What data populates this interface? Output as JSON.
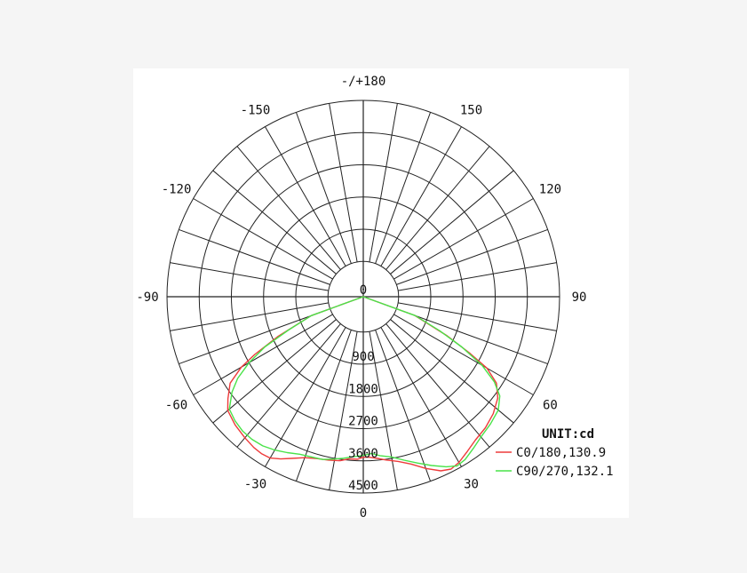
{
  "chart_data": {
    "type": "polar-line",
    "title": "",
    "unit_label": "UNIT:cd",
    "radial_max": 4500,
    "radial_ticks": [
      0,
      900,
      1800,
      2700,
      3600,
      4500
    ],
    "radial_tick_labels": [
      "0",
      "900",
      "1800",
      "2700",
      "3600",
      "4500"
    ],
    "angle_step_deg": 10,
    "angle_labels": [
      {
        "deg": 0,
        "text": "0"
      },
      {
        "deg": 30,
        "text": "30"
      },
      {
        "deg": 60,
        "text": "60"
      },
      {
        "deg": 90,
        "text": "90"
      },
      {
        "deg": 120,
        "text": "120"
      },
      {
        "deg": 150,
        "text": "150"
      },
      {
        "deg": 180,
        "text": "-/+180"
      },
      {
        "deg": -150,
        "text": "-150"
      },
      {
        "deg": -120,
        "text": "-120"
      },
      {
        "deg": -90,
        "text": "-90"
      },
      {
        "deg": -60,
        "text": "-60"
      },
      {
        "deg": -30,
        "text": "-30"
      }
    ],
    "grid": true,
    "legend_position": "bottom-right",
    "series": [
      {
        "name": "C0/180,130.9",
        "color": "#ee3b3b",
        "points": [
          [
            -70,
            560
          ],
          [
            -65,
            1650
          ],
          [
            -62,
            2450
          ],
          [
            -60,
            2950
          ],
          [
            -57,
            3450
          ],
          [
            -53,
            3750
          ],
          [
            -50,
            3960
          ],
          [
            -45,
            4080
          ],
          [
            -40,
            4160
          ],
          [
            -36,
            4220
          ],
          [
            -33,
            4240
          ],
          [
            -30,
            4220
          ],
          [
            -27,
            4100
          ],
          [
            -24,
            3960
          ],
          [
            -20,
            3800
          ],
          [
            -16,
            3720
          ],
          [
            -12,
            3680
          ],
          [
            -8,
            3640
          ],
          [
            -5,
            3560
          ],
          [
            -2,
            3560
          ],
          [
            0,
            3500
          ],
          [
            2,
            3500
          ],
          [
            5,
            3550
          ],
          [
            8,
            3620
          ],
          [
            12,
            3720
          ],
          [
            16,
            3880
          ],
          [
            20,
            4120
          ],
          [
            24,
            4340
          ],
          [
            27,
            4420
          ],
          [
            30,
            4360
          ],
          [
            34,
            4220
          ],
          [
            38,
            4100
          ],
          [
            43,
            4020
          ],
          [
            48,
            3900
          ],
          [
            53,
            3720
          ],
          [
            57,
            3450
          ],
          [
            60,
            3000
          ],
          [
            62,
            2400
          ],
          [
            65,
            1600
          ],
          [
            70,
            540
          ]
        ]
      },
      {
        "name": "C90/270,132.1",
        "color": "#49e349",
        "points": [
          [
            -70,
            560
          ],
          [
            -66,
            1300
          ],
          [
            -63,
            2100
          ],
          [
            -60,
            2700
          ],
          [
            -57,
            3200
          ],
          [
            -54,
            3550
          ],
          [
            -50,
            3900
          ],
          [
            -46,
            4000
          ],
          [
            -42,
            4060
          ],
          [
            -38,
            4070
          ],
          [
            -34,
            4040
          ],
          [
            -30,
            3960
          ],
          [
            -26,
            3860
          ],
          [
            -22,
            3760
          ],
          [
            -18,
            3720
          ],
          [
            -14,
            3700
          ],
          [
            -10,
            3620
          ],
          [
            -7,
            3560
          ],
          [
            -4,
            3500
          ],
          [
            -1,
            3460
          ],
          [
            1,
            3430
          ],
          [
            3,
            3400
          ],
          [
            6,
            3480
          ],
          [
            10,
            3560
          ],
          [
            14,
            3720
          ],
          [
            18,
            3900
          ],
          [
            22,
            4100
          ],
          [
            26,
            4300
          ],
          [
            29,
            4420
          ],
          [
            32,
            4380
          ],
          [
            36,
            4250
          ],
          [
            40,
            4130
          ],
          [
            45,
            4040
          ],
          [
            50,
            3940
          ],
          [
            54,
            3730
          ],
          [
            57,
            3380
          ],
          [
            60,
            2850
          ],
          [
            63,
            2100
          ],
          [
            66,
            1350
          ],
          [
            70,
            560
          ]
        ]
      }
    ]
  }
}
